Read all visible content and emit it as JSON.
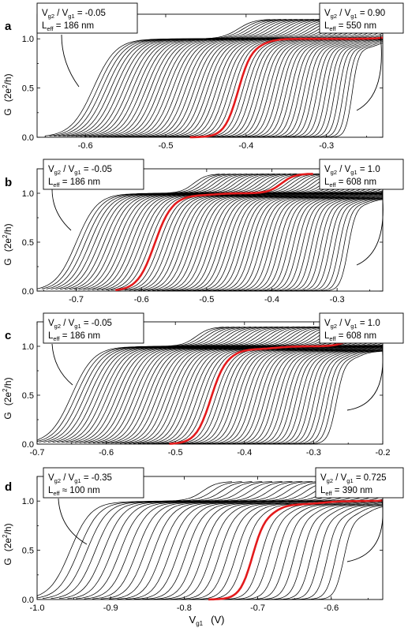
{
  "chart_data": [
    {
      "panel": "a",
      "type": "line",
      "ylabel": "G (2e²/h)",
      "xlabel": "",
      "xlim": [
        -0.66,
        -0.23
      ],
      "ylim": [
        0.0,
        1.25
      ],
      "xticks": [
        -0.6,
        -0.5,
        -0.4,
        -0.3
      ],
      "xticklabels": [
        "-0.6",
        "-0.5",
        "-0.4",
        "-0.3"
      ],
      "yticks": [
        0.0,
        0.5,
        1.0
      ],
      "yticklabels": [
        "0.0",
        "0.5",
        "1.0"
      ],
      "ncurves": 60,
      "x_half_first": -0.59,
      "x_half_last": -0.268,
      "highlight_x_half": -0.41,
      "width_first": 0.014,
      "width_last": 0.004,
      "plateau_07_first": 0.0,
      "plateau_07_last": 0.1,
      "plateau_1_first": 0.0,
      "plateau_1_last": 0.0,
      "annotation_left": {
        "ratio": "V_g2 / V_g1 = -0.05",
        "leff": "L_eff = 186 nm"
      },
      "annotation_right": {
        "ratio": "V_g2 / V_g1 = 0.90",
        "leff": "L_eff = 550 nm"
      }
    },
    {
      "panel": "b",
      "type": "line",
      "ylabel": "G (2e²/h)",
      "xlabel": "",
      "xlim": [
        -0.76,
        -0.23
      ],
      "ylim": [
        0.0,
        1.25
      ],
      "xticks": [
        -0.7,
        -0.6,
        -0.5,
        -0.4,
        -0.3
      ],
      "xticklabels": [
        "-0.7",
        "-0.6",
        "-0.5",
        "-0.4",
        "-0.3"
      ],
      "yticks": [
        0.0,
        0.5,
        1.0
      ],
      "yticklabels": [
        "0.0",
        "0.5",
        "1.0"
      ],
      "ncurves": 60,
      "x_half_first": -0.7,
      "x_half_last": -0.283,
      "highlight_x_half": -0.578,
      "width_first": 0.016,
      "width_last": 0.006,
      "plateau_07_first": 0.0,
      "plateau_07_last": 0.06,
      "plateau_1_first": 0.02,
      "plateau_1_last": 0.5,
      "annotation_left": {
        "ratio": "V_g2 / V_g1 = -0.05",
        "leff": "L_eff = 186 nm"
      },
      "annotation_right": {
        "ratio": "V_g2 / V_g1 = 1.0",
        "leff": "L_eff = 608 nm"
      }
    },
    {
      "panel": "c",
      "type": "line",
      "ylabel": "G (2e²/h)",
      "xlabel": "",
      "xlim": [
        -0.7,
        -0.2
      ],
      "ylim": [
        0.0,
        1.25
      ],
      "xticks": [
        -0.7,
        -0.6,
        -0.5,
        -0.4,
        -0.3,
        -0.2
      ],
      "xticklabels": [
        "-0.7",
        "-0.6",
        "-0.5",
        "-0.4",
        "-0.3",
        "-0.2"
      ],
      "yticks": [
        0.0,
        0.5,
        1.0
      ],
      "yticklabels": [
        "0.0",
        "0.5",
        "1.0"
      ],
      "ncurves": 60,
      "x_half_first": -0.65,
      "x_half_last": -0.267,
      "highlight_x_half": -0.45,
      "width_first": 0.016,
      "width_last": 0.006,
      "plateau_07_first": 0.0,
      "plateau_07_last": 0.08,
      "plateau_1_first": 0.02,
      "plateau_1_last": 0.45,
      "annotation_left": {
        "ratio": "V_g2 / V_g1 = -0.05",
        "leff": "L_eff = 186 nm"
      },
      "annotation_right": {
        "ratio": "V_g2 / V_g1 = 1.0",
        "leff": "L_eff = 608 nm"
      }
    },
    {
      "panel": "d",
      "type": "line",
      "ylabel": "G (2e²/h)",
      "xlabel": "V_g1 (V)",
      "xlim": [
        -1.0,
        -0.53
      ],
      "ylim": [
        0.0,
        1.25
      ],
      "xticks": [
        -1.0,
        -0.9,
        -0.8,
        -0.7,
        -0.6
      ],
      "xticklabels": [
        "-1.0",
        "-0.9",
        "-0.8",
        "-0.7",
        "-0.6"
      ],
      "yticks": [
        0.0,
        0.5,
        1.0
      ],
      "yticklabels": [
        "0.0",
        "0.5",
        "1.0"
      ],
      "ncurves": 34,
      "x_half_first": -0.955,
      "x_half_last": -0.583,
      "highlight_x_half": -0.712,
      "width_first": 0.014,
      "width_last": 0.006,
      "plateau_07_first": 0.0,
      "plateau_07_last": 0.12,
      "plateau_1_first": 0.05,
      "plateau_1_last": 0.4,
      "annotation_left": {
        "ratio": "V_g2 / V_g1 = -0.35",
        "leff": "L_eff ≈ 100 nm"
      },
      "annotation_right": {
        "ratio": "V_g2 / V_g1 = 0.725",
        "leff": "L_eff = 390 nm"
      }
    }
  ],
  "labels": {
    "panel_letters": [
      "a",
      "b",
      "c",
      "d"
    ],
    "ylabel_G": "G",
    "ylabel_unit": "(2e",
    "ylabel_sup": "2",
    "ylabel_tail": "/h)",
    "xlabel_V": "V",
    "xlabel_sub": "g1",
    "xlabel_unit": "(V)",
    "ann": {
      "a_left_1": "V",
      "a_left_sub1": "g2",
      "a_left_mid": " / V",
      "a_left_sub2": "g1",
      "a_left_val": " = -0.05",
      "a_left_L": "L",
      "a_left_Lsub": "eff",
      "a_left_Lval": " = 186 nm",
      "a_right_1": "V",
      "a_right_sub1": "g2",
      "a_right_mid": " / V",
      "a_right_sub2": "g1",
      "a_right_val": " = 0.90",
      "a_right_L": "L",
      "a_right_Lsub": "eff",
      "a_right_Lval": " = 550 nm",
      "b_left_val": " = -0.05",
      "b_left_Lval": " = 186 nm",
      "b_right_val": " = 1.0",
      "b_right_Lval": " = 608 nm",
      "c_left_val": " = -0.05",
      "c_left_Lval": " = 186 nm",
      "c_right_val": " = 1.0",
      "c_right_Lval": " = 608 nm",
      "d_left_val": " = -0.35",
      "d_left_Lval": " ≈ 100 nm",
      "d_right_val": " = 0.725",
      "d_right_Lval": " = 390 nm"
    }
  }
}
